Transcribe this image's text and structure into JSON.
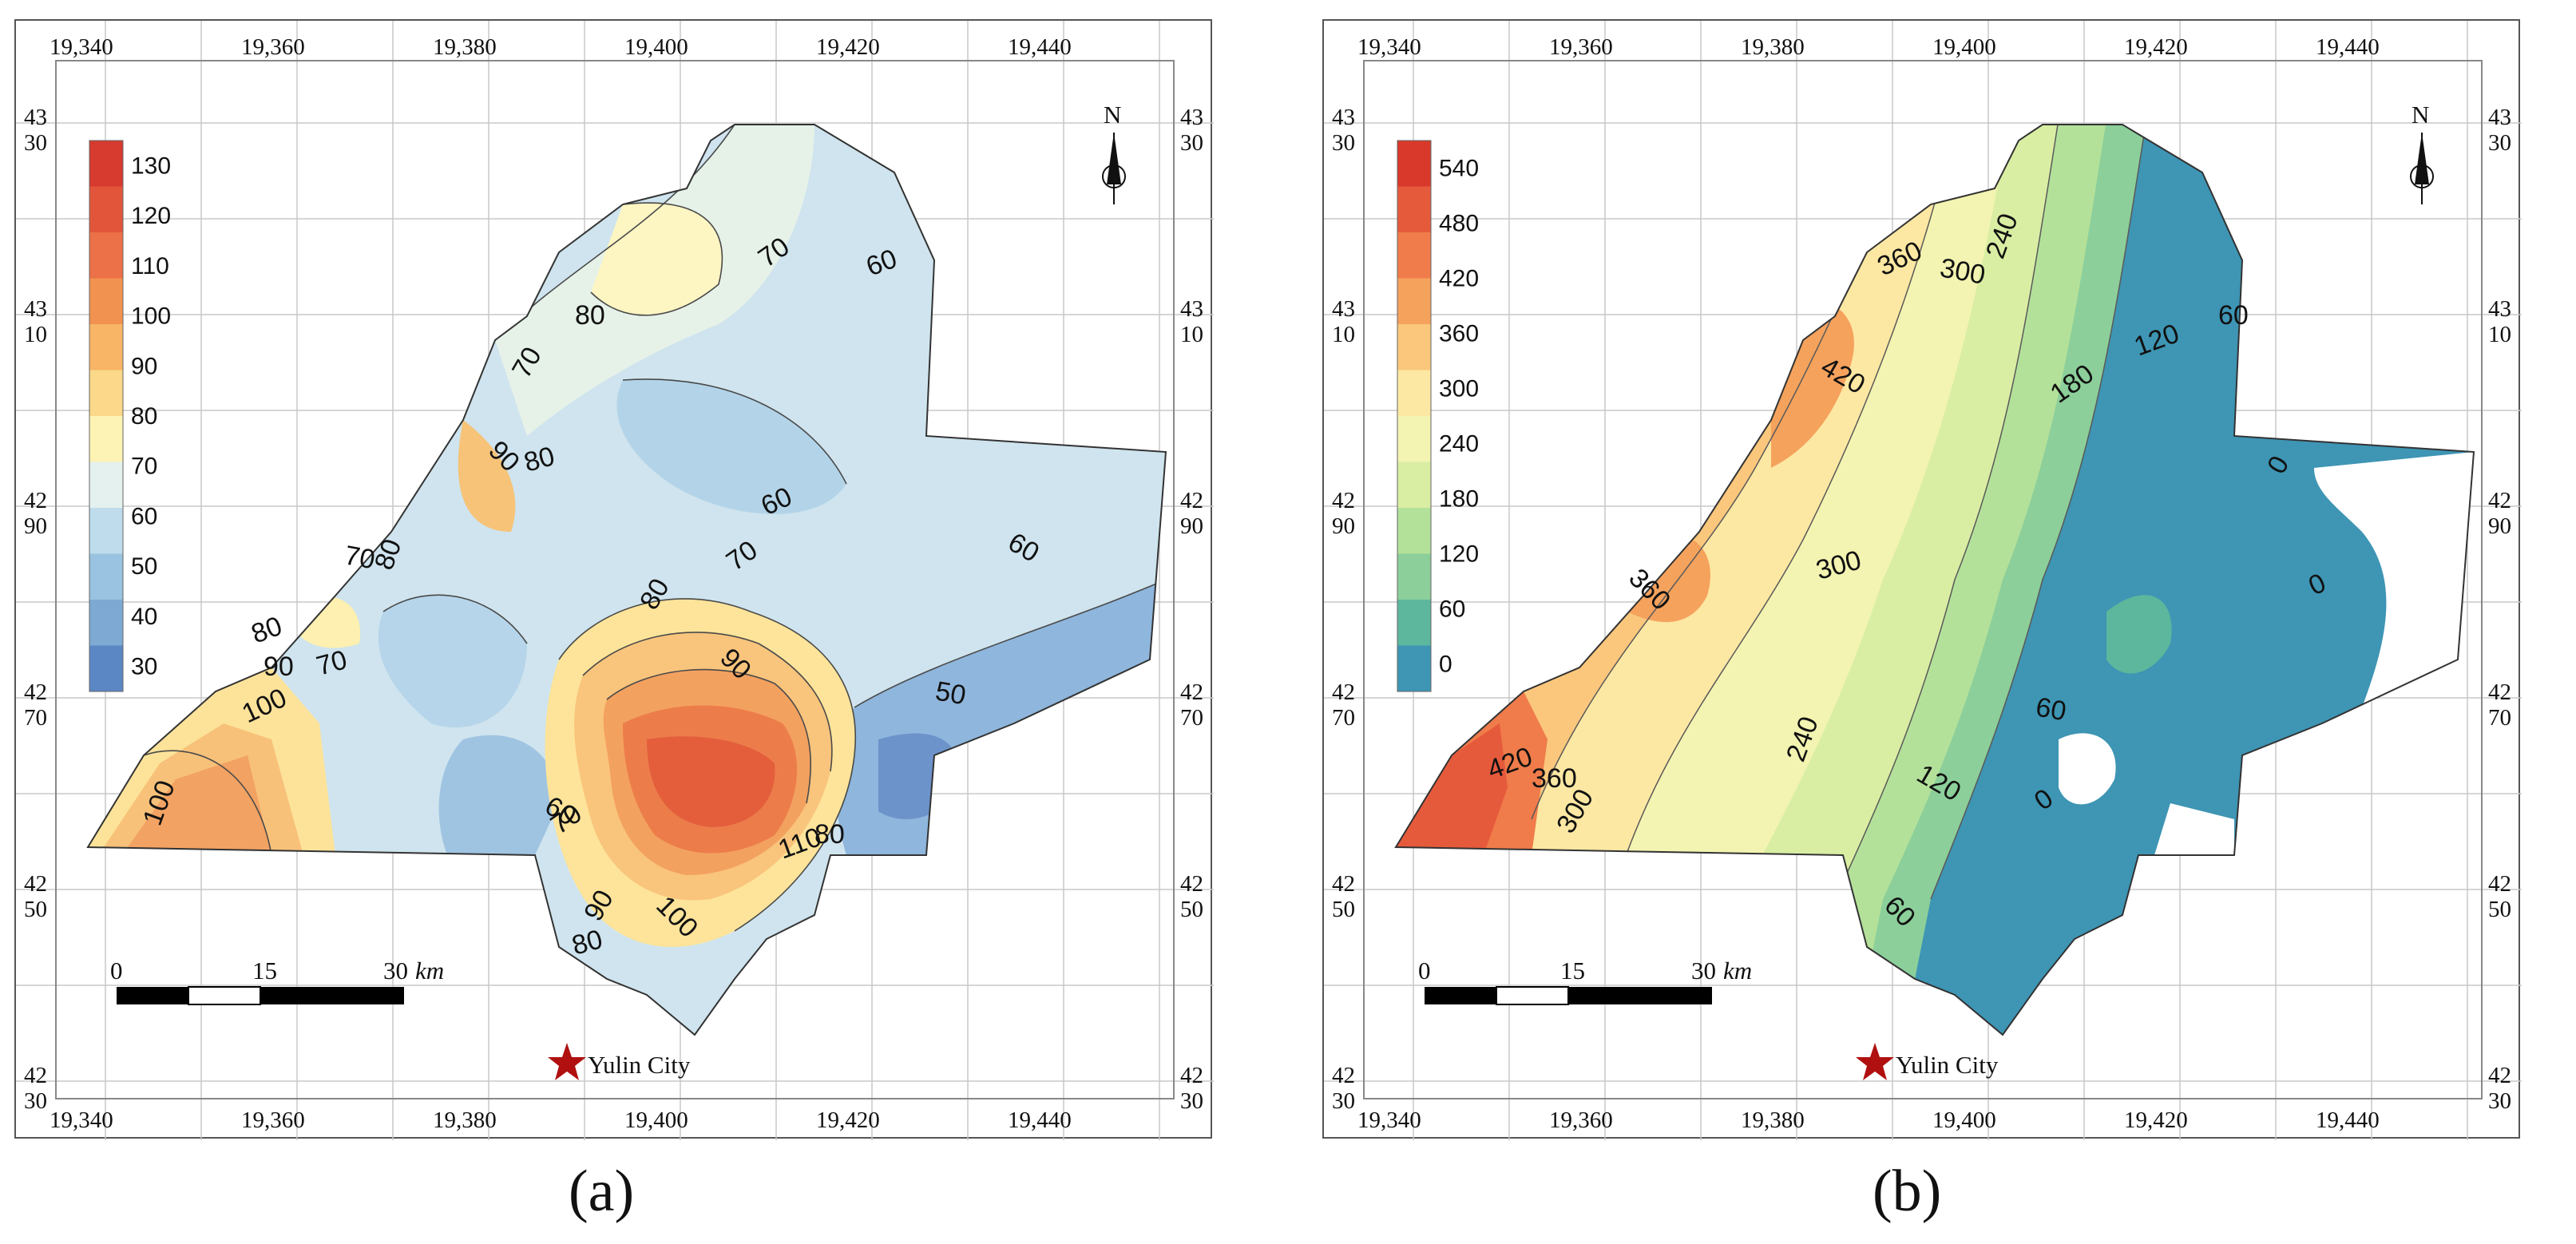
{
  "panels": [
    {
      "label": "(a)",
      "x_ticks": [
        "19,340",
        "19,360",
        "19,380",
        "19,400",
        "19,420",
        "19,440"
      ],
      "y_ticks": [
        {
          "l1": "43",
          "l2": "30"
        },
        {
          "l1": "43",
          "l2": "10"
        },
        {
          "l1": "42",
          "l2": "90"
        },
        {
          "l1": "42",
          "l2": "70"
        },
        {
          "l1": "42",
          "l2": "50"
        },
        {
          "l1": "42",
          "l2": "30"
        }
      ],
      "legend": [
        "130",
        "120",
        "110",
        "100",
        "90",
        "80",
        "70",
        "60",
        "50",
        "40",
        "30"
      ],
      "legend_colors": [
        "#d73a2e",
        "#e2553a",
        "#ec7048",
        "#f29250",
        "#f7b565",
        "#fbd88a",
        "#fdf3b4",
        "#e4f1ee",
        "#bedceb",
        "#99c3e0",
        "#7da9d3",
        "#5b87c5"
      ],
      "contour_labels": [
        "70",
        "60",
        "80",
        "70",
        "90",
        "80",
        "60",
        "70",
        "80",
        "60",
        "70",
        "80",
        "90",
        "80",
        "90",
        "70",
        "100",
        "50",
        "100",
        "60",
        "70",
        "110",
        "80",
        "90",
        "100",
        "80"
      ],
      "north": "N",
      "scale": {
        "t0": "0",
        "t1": "15",
        "t2": "30",
        "unit": "km"
      },
      "city": "Yulin City"
    },
    {
      "label": "(b)",
      "x_ticks": [
        "19,340",
        "19,360",
        "19,380",
        "19,400",
        "19,420",
        "19,440"
      ],
      "y_ticks": [
        {
          "l1": "43",
          "l2": "30"
        },
        {
          "l1": "43",
          "l2": "10"
        },
        {
          "l1": "42",
          "l2": "90"
        },
        {
          "l1": "42",
          "l2": "70"
        },
        {
          "l1": "42",
          "l2": "50"
        },
        {
          "l1": "42",
          "l2": "30"
        }
      ],
      "legend": [
        "540",
        "480",
        "420",
        "360",
        "300",
        "240",
        "180",
        "120",
        "60",
        "0"
      ],
      "legend_colors": [
        "#d8392b",
        "#e65a3c",
        "#ef7c4a",
        "#f5a25d",
        "#fac77c",
        "#fde8a3",
        "#f3f4b1",
        "#d9eea3",
        "#b4e19a",
        "#8ccf9a",
        "#5db79c",
        "#3e95b4"
      ],
      "contour_labels": [
        "360",
        "300",
        "240",
        "420",
        "180",
        "120",
        "60",
        "0",
        "360",
        "300",
        "0",
        "60",
        "240",
        "120",
        "0",
        "420",
        "360",
        "300",
        "60"
      ],
      "north": "N",
      "scale": {
        "t0": "0",
        "t1": "15",
        "t2": "30",
        "unit": "km"
      },
      "city": "Yulin City"
    }
  ]
}
